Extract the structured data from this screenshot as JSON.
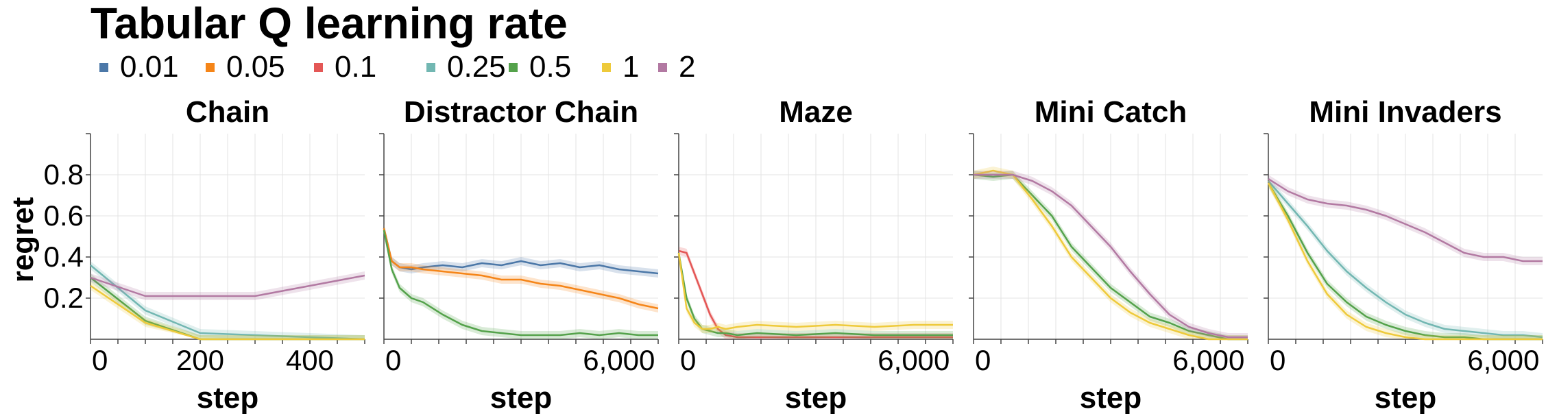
{
  "title": "Tabular Q learning rate",
  "legend": [
    {
      "label": "0.01",
      "color": "#4c78a8"
    },
    {
      "label": "0.05",
      "color": "#f58518"
    },
    {
      "label": "0.1",
      "color": "#e45756"
    },
    {
      "label": "0.25",
      "color": "#72b7b2"
    },
    {
      "label": "0.5",
      "color": "#54a24b"
    },
    {
      "label": "1",
      "color": "#eeca3b"
    },
    {
      "label": "2",
      "color": "#b279a2"
    }
  ],
  "ylabel": "regret",
  "y_ticks": [
    "0.2",
    "0.4",
    "0.6",
    "0.8"
  ],
  "chart_data": [
    {
      "type": "line",
      "title": "Chain",
      "xlabel": "step",
      "xlim": [
        0,
        500
      ],
      "ylim": [
        0,
        1
      ],
      "x_ticks": [
        "0",
        "200",
        "400"
      ],
      "series": [
        {
          "name": "0.25",
          "x": [
            0,
            100,
            200,
            300,
            400,
            500
          ],
          "y": [
            0.36,
            0.14,
            0.03,
            0.02,
            0.01,
            0.0
          ]
        },
        {
          "name": "0.5",
          "x": [
            0,
            100,
            200,
            300,
            400,
            500
          ],
          "y": [
            0.3,
            0.09,
            0.0,
            0.0,
            0.0,
            0.0
          ]
        },
        {
          "name": "1",
          "x": [
            0,
            100,
            200,
            300,
            400,
            500
          ],
          "y": [
            0.26,
            0.08,
            0.0,
            0.0,
            0.0,
            0.0
          ]
        },
        {
          "name": "2",
          "x": [
            0,
            100,
            200,
            300,
            400,
            500
          ],
          "y": [
            0.3,
            0.21,
            0.21,
            0.21,
            0.26,
            0.31
          ]
        }
      ]
    },
    {
      "type": "line",
      "title": "Distractor Chain",
      "xlabel": "step",
      "xlim": [
        0,
        7000
      ],
      "ylim": [
        0,
        1
      ],
      "x_ticks": [
        "0",
        "6,000"
      ],
      "series": [
        {
          "name": "0.01",
          "x": [
            0,
            200,
            400,
            700,
            1000,
            1500,
            2000,
            2500,
            3000,
            3500,
            4000,
            4500,
            5000,
            5500,
            6000,
            6500,
            7000
          ],
          "y": [
            0.54,
            0.38,
            0.35,
            0.34,
            0.35,
            0.36,
            0.35,
            0.37,
            0.36,
            0.38,
            0.36,
            0.37,
            0.35,
            0.36,
            0.34,
            0.33,
            0.32
          ]
        },
        {
          "name": "0.05",
          "x": [
            0,
            200,
            400,
            700,
            1000,
            1500,
            2000,
            2500,
            3000,
            3500,
            4000,
            4500,
            5000,
            5500,
            6000,
            6500,
            7000
          ],
          "y": [
            0.54,
            0.38,
            0.35,
            0.35,
            0.34,
            0.33,
            0.32,
            0.31,
            0.29,
            0.29,
            0.27,
            0.26,
            0.24,
            0.22,
            0.2,
            0.17,
            0.15
          ]
        },
        {
          "name": "0.5",
          "x": [
            0,
            200,
            400,
            700,
            1000,
            1500,
            2000,
            2500,
            3000,
            3500,
            4000,
            4500,
            5000,
            5500,
            6000,
            6500,
            7000
          ],
          "y": [
            0.53,
            0.34,
            0.25,
            0.2,
            0.18,
            0.12,
            0.07,
            0.04,
            0.03,
            0.02,
            0.02,
            0.02,
            0.03,
            0.02,
            0.03,
            0.02,
            0.02
          ]
        }
      ]
    },
    {
      "type": "line",
      "title": "Maze",
      "xlabel": "step",
      "xlim": [
        0,
        7000
      ],
      "ylim": [
        0,
        1
      ],
      "x_ticks": [
        "0",
        "6,000"
      ],
      "series": [
        {
          "name": "0.1",
          "x": [
            0,
            200,
            400,
            600,
            800,
            1000,
            1200,
            1500,
            2000,
            3000,
            4000,
            5000,
            6000,
            7000
          ],
          "y": [
            0.43,
            0.42,
            0.32,
            0.22,
            0.12,
            0.05,
            0.02,
            0.01,
            0.01,
            0.01,
            0.01,
            0.01,
            0.01,
            0.01
          ]
        },
        {
          "name": "0.5",
          "x": [
            0,
            200,
            400,
            600,
            800,
            1000,
            1200,
            1500,
            2000,
            3000,
            4000,
            5000,
            6000,
            7000
          ],
          "y": [
            0.42,
            0.2,
            0.1,
            0.05,
            0.04,
            0.03,
            0.03,
            0.02,
            0.03,
            0.02,
            0.03,
            0.02,
            0.02,
            0.02
          ]
        },
        {
          "name": "1",
          "x": [
            0,
            200,
            400,
            600,
            800,
            1000,
            1200,
            1500,
            2000,
            3000,
            4000,
            5000,
            6000,
            7000
          ],
          "y": [
            0.42,
            0.15,
            0.08,
            0.05,
            0.05,
            0.06,
            0.05,
            0.06,
            0.07,
            0.06,
            0.07,
            0.06,
            0.07,
            0.07
          ]
        }
      ]
    },
    {
      "type": "line",
      "title": "Mini Catch",
      "xlabel": "step",
      "xlim": [
        0,
        7000
      ],
      "ylim": [
        0,
        1
      ],
      "x_ticks": [
        "0",
        "6,000"
      ],
      "series": [
        {
          "name": "0.5",
          "x": [
            0,
            500,
            1000,
            1500,
            2000,
            2500,
            3000,
            3500,
            4000,
            4500,
            5000,
            5500,
            6000,
            6500,
            7000
          ],
          "y": [
            0.8,
            0.79,
            0.8,
            0.7,
            0.6,
            0.45,
            0.35,
            0.25,
            0.18,
            0.11,
            0.08,
            0.04,
            0.02,
            0.0,
            0.0
          ]
        },
        {
          "name": "1",
          "x": [
            0,
            500,
            1000,
            1500,
            2000,
            2500,
            3000,
            3500,
            4000,
            4500,
            5000,
            5500,
            6000,
            6500,
            7000
          ],
          "y": [
            0.8,
            0.82,
            0.8,
            0.68,
            0.55,
            0.4,
            0.3,
            0.2,
            0.13,
            0.08,
            0.05,
            0.02,
            0.0,
            0.0,
            0.0
          ]
        },
        {
          "name": "2",
          "x": [
            0,
            500,
            1000,
            1500,
            2000,
            2500,
            3000,
            3500,
            4000,
            4500,
            5000,
            5500,
            6000,
            6500,
            7000
          ],
          "y": [
            0.8,
            0.8,
            0.8,
            0.77,
            0.72,
            0.65,
            0.55,
            0.45,
            0.33,
            0.22,
            0.12,
            0.06,
            0.03,
            0.01,
            0.01
          ]
        }
      ]
    },
    {
      "type": "line",
      "title": "Mini Invaders",
      "xlabel": "step",
      "xlim": [
        0,
        7000
      ],
      "ylim": [
        0,
        1
      ],
      "x_ticks": [
        "0",
        "6,000"
      ],
      "series": [
        {
          "name": "0.25",
          "x": [
            0,
            500,
            1000,
            1500,
            2000,
            2500,
            3000,
            3500,
            4000,
            4500,
            5000,
            5500,
            6000,
            6500,
            7000
          ],
          "y": [
            0.77,
            0.66,
            0.55,
            0.43,
            0.33,
            0.25,
            0.18,
            0.12,
            0.08,
            0.05,
            0.04,
            0.03,
            0.02,
            0.02,
            0.01
          ]
        },
        {
          "name": "0.5",
          "x": [
            0,
            500,
            1000,
            1500,
            2000,
            2500,
            3000,
            3500,
            4000,
            4500,
            5000,
            5500,
            6000,
            6500,
            7000
          ],
          "y": [
            0.76,
            0.6,
            0.42,
            0.27,
            0.18,
            0.11,
            0.07,
            0.04,
            0.02,
            0.01,
            0.01,
            0.0,
            0.0,
            0.0,
            0.0
          ]
        },
        {
          "name": "1",
          "x": [
            0,
            500,
            1000,
            1500,
            2000,
            2500,
            3000,
            3500,
            4000,
            4500,
            5000,
            5500,
            6000,
            6500,
            7000
          ],
          "y": [
            0.76,
            0.58,
            0.38,
            0.22,
            0.12,
            0.06,
            0.03,
            0.01,
            0.0,
            0.0,
            0.0,
            0.0,
            0.0,
            0.0,
            0.0
          ]
        },
        {
          "name": "2",
          "x": [
            0,
            500,
            1000,
            1500,
            2000,
            2500,
            3000,
            3500,
            4000,
            4500,
            5000,
            5500,
            6000,
            6500,
            7000
          ],
          "y": [
            0.78,
            0.72,
            0.68,
            0.66,
            0.65,
            0.63,
            0.6,
            0.56,
            0.52,
            0.47,
            0.42,
            0.4,
            0.4,
            0.38,
            0.38
          ]
        }
      ]
    }
  ]
}
